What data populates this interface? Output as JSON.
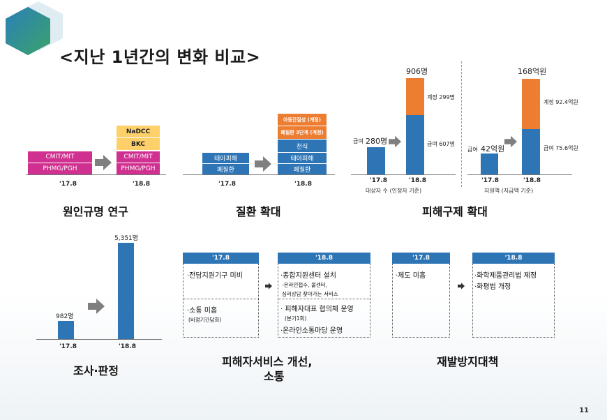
{
  "title": "<지난 1년간의 변화 비교>",
  "page_number": "11",
  "panel1": {
    "caption": "원인규명 연구",
    "before": {
      "label": "'17.8",
      "blocks": [
        "CMIT/MIT",
        "PHMG/PGH"
      ]
    },
    "after": {
      "label": "'18.8",
      "blocks": [
        "NaDCC",
        "BKC",
        "CMIT/MIT",
        "PHMG/PGH"
      ]
    }
  },
  "panel2": {
    "caption": "질환 확대",
    "before": {
      "label": "'17.8",
      "blocks": [
        "태아피해",
        "폐질환"
      ]
    },
    "after": {
      "label": "'18.8",
      "blocks": [
        "아동간질성 (계정)",
        "폐질환 3단계 (계정)",
        "천식",
        "태아피해",
        "폐질환"
      ]
    }
  },
  "panel3": {
    "caption": "피해구제 확대",
    "left": {
      "subtitle": "대상자 수 (인정자 기준)",
      "before": {
        "label": "'17.8",
        "value_label": "급여",
        "value": "280명"
      },
      "after": {
        "label": "'18.8",
        "total": "906명",
        "top_label": "계정 299명",
        "bottom_label": "급여 607명"
      }
    },
    "right": {
      "subtitle": "지원액 (지급액 기준)",
      "before": {
        "label": "'17.8",
        "value_label": "급여",
        "value": "42억원"
      },
      "after": {
        "label": "'18.8",
        "total": "168억원",
        "top_label": "계정 92.4억원",
        "bottom_label": "급여 75.6억원"
      }
    }
  },
  "panel4": {
    "caption": "조사·판정",
    "before": {
      "label": "'17.8",
      "value": "982명"
    },
    "after": {
      "label": "'18.8",
      "value": "5,351명"
    }
  },
  "panel5": {
    "caption_line1": "피해자서비스 개선,",
    "caption_line2": "소통",
    "before_header": "'17.8",
    "after_header": "'18.8",
    "before_items": [
      {
        "main": "·전담지원기구 미비",
        "sub": ""
      },
      {
        "main": "·소통 미흡",
        "sub": "(비정기간담회)"
      }
    ],
    "after_items": [
      {
        "main": "·종합지원센터 설치",
        "sub1": "-온라인접수, 콜센터,",
        "sub2": "심리상담 찾아가는 서비스"
      },
      {
        "main": "· 피해자대표 협의체 운영",
        "sub1": "(분기1회)",
        "main2": "·온라인소통마당 운영"
      }
    ]
  },
  "panel6": {
    "caption": "재발방지대책",
    "before_header": "'17.8",
    "after_header": "'18.8",
    "before_item": "·제도 미흡",
    "after_items": [
      "·화학제품관리법 제정",
      "·화평법 개정"
    ]
  },
  "colors": {
    "magenta": "#d0308f",
    "yellow": "#fdd06a",
    "blue": "#2e75b6",
    "orange": "#ed7d31"
  }
}
